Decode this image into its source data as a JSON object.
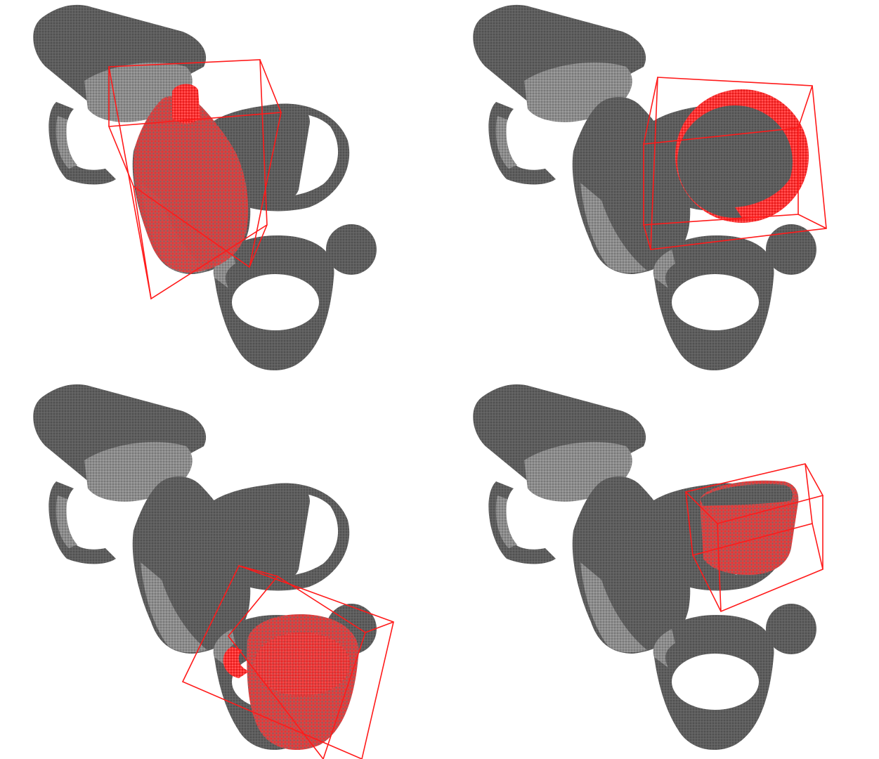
{
  "figure": {
    "panels": [
      {
        "id": "panel-1",
        "highlighted_object": "bottle",
        "box_color": "#ff1a1a"
      },
      {
        "id": "panel-2",
        "highlighted_object": "bowl",
        "box_color": "#ff1a1a"
      },
      {
        "id": "panel-3",
        "highlighted_object": "mug",
        "box_color": "#ff1a1a"
      },
      {
        "id": "panel-4",
        "highlighted_object": "box",
        "box_color": "#ff1a1a"
      }
    ],
    "colors": {
      "point_cloud": "#5a5a5a",
      "point_cloud_light": "#9a9a9a",
      "highlight": "#ff2020",
      "background": "#ffffff"
    }
  }
}
